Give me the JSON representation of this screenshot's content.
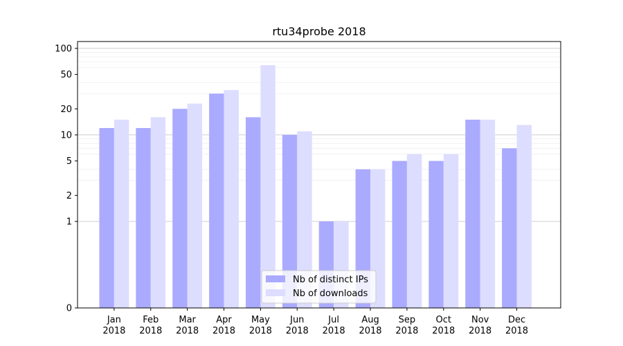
{
  "chart_data": {
    "type": "bar",
    "title": "rtu34probe 2018",
    "xlabel": "",
    "ylabel": "",
    "yscale": "symlog",
    "ylim": [
      0,
      120
    ],
    "yticks": [
      0,
      1,
      2,
      5,
      10,
      20,
      50,
      100
    ],
    "ytick_labels": [
      "0",
      "1",
      "2",
      "5",
      "10",
      "20",
      "50",
      "100"
    ],
    "grid": "horizontal",
    "legend_position": "bottom-center",
    "categories": [
      {
        "month": "Jan",
        "year": "2018"
      },
      {
        "month": "Feb",
        "year": "2018"
      },
      {
        "month": "Mar",
        "year": "2018"
      },
      {
        "month": "Apr",
        "year": "2018"
      },
      {
        "month": "May",
        "year": "2018"
      },
      {
        "month": "Jun",
        "year": "2018"
      },
      {
        "month": "Jul",
        "year": "2018"
      },
      {
        "month": "Aug",
        "year": "2018"
      },
      {
        "month": "Sep",
        "year": "2018"
      },
      {
        "month": "Oct",
        "year": "2018"
      },
      {
        "month": "Nov",
        "year": "2018"
      },
      {
        "month": "Dec",
        "year": "2018"
      }
    ],
    "series": [
      {
        "name": "Nb of distinct IPs",
        "color": "#aaaaff",
        "values": [
          12,
          12,
          20,
          30,
          16,
          10,
          1,
          4,
          5,
          5,
          15,
          7
        ]
      },
      {
        "name": "Nb of downloads",
        "color": "#ddddff",
        "values": [
          15,
          16,
          23,
          33,
          64,
          11,
          1,
          4,
          6,
          6,
          15,
          13
        ]
      }
    ]
  }
}
